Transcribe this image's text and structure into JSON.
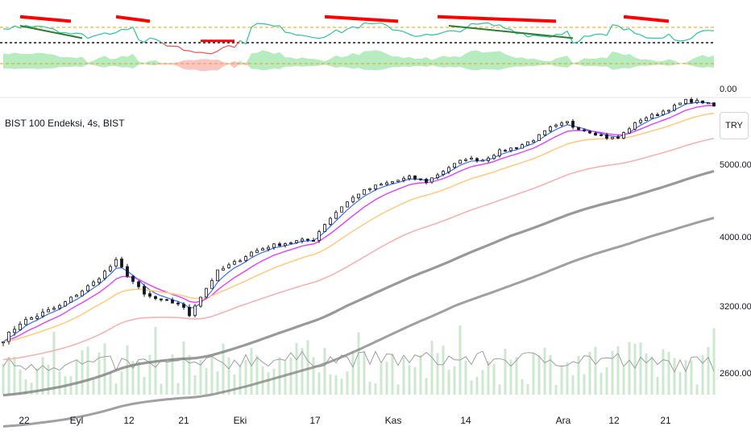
{
  "header": {
    "symbol": "BIST 100 Endeksi, 4s, BIST",
    "currency_button": "TRY"
  },
  "indicator": {
    "zero_label": "0.00"
  },
  "chart_data": {
    "type": "candlestick",
    "price_axis": {
      "ticks": [
        2600,
        3200,
        4000,
        5000
      ],
      "labels": [
        "2600.00",
        "3200.00",
        "4000.00",
        "5000.00"
      ]
    },
    "time_axis": {
      "labels": [
        "22",
        "Eyl",
        "12",
        "21",
        "Eki",
        "17",
        "Kas",
        "14",
        "Ara",
        "12",
        "21"
      ]
    },
    "price_waypoints": [
      [
        0,
        2900
      ],
      [
        3,
        3050
      ],
      [
        10,
        3200
      ],
      [
        16,
        3470
      ],
      [
        20,
        3720
      ],
      [
        22,
        3560
      ],
      [
        25,
        3330
      ],
      [
        28,
        3260
      ],
      [
        31,
        3230
      ],
      [
        33,
        3120
      ],
      [
        35,
        3310
      ],
      [
        38,
        3600
      ],
      [
        41,
        3700
      ],
      [
        44,
        3820
      ],
      [
        47,
        3890
      ],
      [
        52,
        3950
      ],
      [
        55,
        3970
      ],
      [
        57,
        4180
      ],
      [
        60,
        4420
      ],
      [
        63,
        4600
      ],
      [
        66,
        4700
      ],
      [
        70,
        4780
      ],
      [
        72,
        4820
      ],
      [
        75,
        4760
      ],
      [
        79,
        4960
      ],
      [
        82,
        5080
      ],
      [
        85,
        5060
      ],
      [
        88,
        5180
      ],
      [
        91,
        5240
      ],
      [
        94,
        5340
      ],
      [
        97,
        5500
      ],
      [
        100,
        5580
      ],
      [
        101,
        5520
      ],
      [
        104,
        5450
      ],
      [
        107,
        5370
      ],
      [
        109,
        5360
      ],
      [
        111,
        5500
      ],
      [
        113,
        5620
      ],
      [
        116,
        5700
      ],
      [
        119,
        5800
      ],
      [
        121,
        5880
      ],
      [
        124,
        5860
      ],
      [
        126,
        5800
      ]
    ],
    "series": [
      {
        "color": "#2962ff"
      },
      {
        "color": "#e040fb"
      },
      {
        "color": "#ffcc80"
      },
      {
        "color": "#f7a8a8"
      },
      {
        "color": "#808080"
      },
      {
        "color": "#808080"
      }
    ],
    "volume_color": "#a5d6a7",
    "volume_line_color": "#9e9e9e",
    "oscillator": {
      "line_up_color": "#26c6a0",
      "line_down_color": "#ef5350",
      "fill_up_color": "#a5e6b0",
      "fill_down_color": "#f8b8b8",
      "bear_divergence_color": "#ff0000",
      "bull_divergence_color": "#2e7d32",
      "level_color": "#f0a000"
    }
  }
}
